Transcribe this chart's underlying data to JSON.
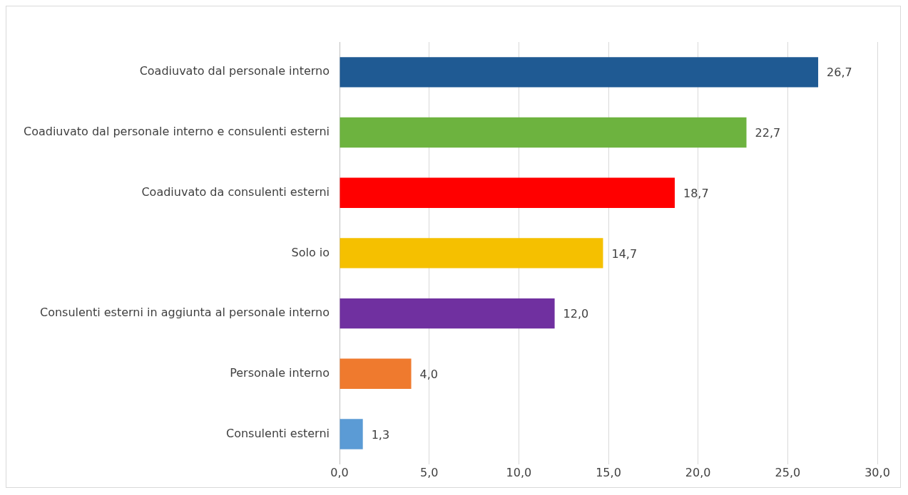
{
  "chart_data": {
    "type": "bar",
    "orientation": "horizontal",
    "categories": [
      "Coadiuvato dal personale interno",
      "Coadiuvato dal personale interno e consulenti esterni",
      "Coadiuvato da consulenti esterni",
      "Solo io",
      "Consulenti esterni in aggiunta al personale interno",
      "Personale interno",
      "Consulenti esterni"
    ],
    "values": [
      26.7,
      22.7,
      18.7,
      14.7,
      12.0,
      4.0,
      1.3
    ],
    "colors": [
      "#1f5a93",
      "#6db33f",
      "#ff0000",
      "#f5c000",
      "#7030a0",
      "#ef7a2e",
      "#5b9bd5"
    ],
    "value_labels": [
      "26,7",
      "22,7",
      "18,7",
      "14,7",
      "12,0",
      "4,0",
      "1,3"
    ],
    "xlim": [
      0,
      30
    ],
    "xticks": [
      {
        "value": 0,
        "label": "0,0"
      },
      {
        "value": 5,
        "label": "5,0"
      },
      {
        "value": 10,
        "label": "10,0"
      },
      {
        "value": 15,
        "label": "15,0"
      },
      {
        "value": 20,
        "label": "20,0"
      },
      {
        "value": 25,
        "label": "25,0"
      },
      {
        "value": 30,
        "label": "30,0"
      }
    ],
    "grid": "x",
    "legend": false
  }
}
